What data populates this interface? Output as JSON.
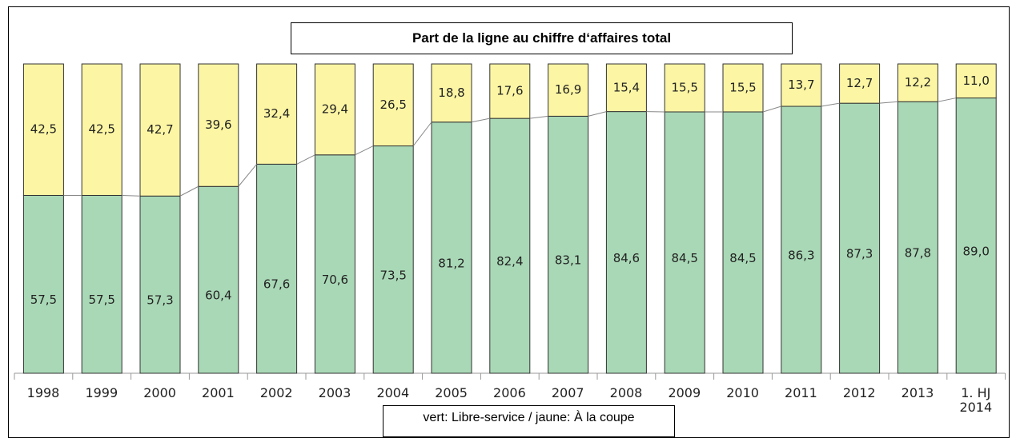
{
  "chart_data": {
    "type": "stacked_bar",
    "title": "Part de la ligne au chiffre d‘affaires total",
    "legend_text": "vert: Libre-service / jaune: À la coupe",
    "categories": [
      "1998",
      "1999",
      "2000",
      "2001",
      "2002",
      "2003",
      "2004",
      "2005",
      "2006",
      "2007",
      "2008",
      "2009",
      "2010",
      "2011",
      "2012",
      "2013",
      "1. HJ\n2014"
    ],
    "ylim": [
      0,
      100
    ],
    "series": [
      {
        "name": "Libre-service",
        "color": "#a9d8b6",
        "values": [
          57.5,
          57.5,
          57.3,
          60.4,
          67.6,
          70.6,
          73.5,
          81.2,
          82.4,
          83.1,
          84.6,
          84.5,
          84.5,
          86.3,
          87.3,
          87.8,
          89.0
        ],
        "value_labels": [
          "57,5",
          "57,5",
          "57,3",
          "60,4",
          "67,6",
          "70,6",
          "73,5",
          "81,2",
          "82,4",
          "83,1",
          "84,6",
          "84,5",
          "84,5",
          "86,3",
          "87,3",
          "87,8",
          "89,0"
        ]
      },
      {
        "name": "À la coupe",
        "color": "#fcf6a4",
        "values": [
          42.5,
          42.5,
          42.7,
          39.6,
          32.4,
          29.4,
          26.5,
          18.8,
          17.6,
          16.9,
          15.4,
          15.5,
          15.5,
          13.7,
          12.7,
          12.2,
          11.0
        ],
        "value_labels": [
          "42,5",
          "42,5",
          "42,7",
          "39,6",
          "32,4",
          "29,4",
          "26,5",
          "18,8",
          "17,6",
          "16,9",
          "15,4",
          "15,5",
          "15,5",
          "13,7",
          "12,7",
          "12,2",
          "11,0"
        ]
      }
    ]
  }
}
